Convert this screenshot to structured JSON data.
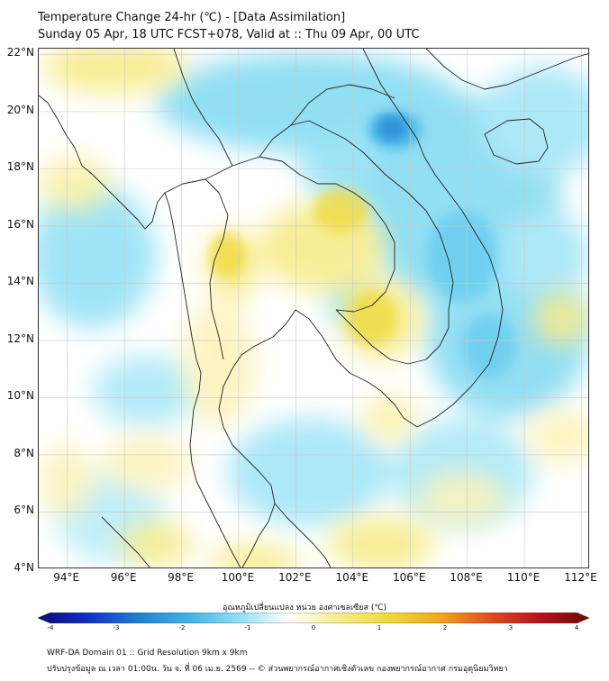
{
  "header": {
    "title": "Temperature Change 24-hr (℃) - [Data Assimilation]",
    "subtitle": "Sunday 05 Apr, 18 UTC FCST+078, Valid at :: Thu 09 Apr, 00 UTC"
  },
  "map": {
    "lat_labels": [
      "22°N",
      "20°N",
      "18°N",
      "16°N",
      "14°N",
      "12°N",
      "10°N",
      "8°N",
      "6°N",
      "4°N"
    ],
    "lon_labels": [
      "94°E",
      "96°E",
      "98°E",
      "100°E",
      "102°E",
      "104°E",
      "106°E",
      "108°E",
      "110°E",
      "112°E"
    ],
    "lat_range": [
      4,
      22.2
    ],
    "lon_range": [
      93,
      112.3
    ],
    "colors": {
      "background": "#ffffff",
      "cool": "#7fd9f2",
      "cool_strong": "#3fb3e6",
      "cold_core": "#1f7fd1",
      "warm": "#f7ec8c",
      "warm_strong": "#efd93a",
      "border": "#222222",
      "grid": "#c8c8c8"
    }
  },
  "colorbar": {
    "label": "อุณหภูมิเปลี่ยนแปลง หน่วย องศาเซลเซียส (℃)",
    "ticks": [
      "-4",
      "-3",
      "-2",
      "-1",
      "0",
      "1",
      "2",
      "3",
      "4"
    ],
    "range": [
      -4,
      4
    ],
    "colors": [
      "#0b0b6e",
      "#1030c8",
      "#1f7fd1",
      "#3fb3e6",
      "#8fe0f5",
      "#ffffff",
      "#f7ec8c",
      "#efd93a",
      "#f2a81e",
      "#e0501e",
      "#b8121c",
      "#6e0a0a"
    ]
  },
  "footer": {
    "line1": "WRF-DA Domain 01 :: Grid Resolution 9km x 9km",
    "line2": "ปรับปรุงข้อมูล ณ เวลา 01:00น. วัน จ. ที่ 06 เม.ย. 2569 -- © ส่วนพยากรณ์อากาศเชิงตัวเลข กองพยากรณ์อากาศ กรมอุตุนิยมวิทยา"
  }
}
